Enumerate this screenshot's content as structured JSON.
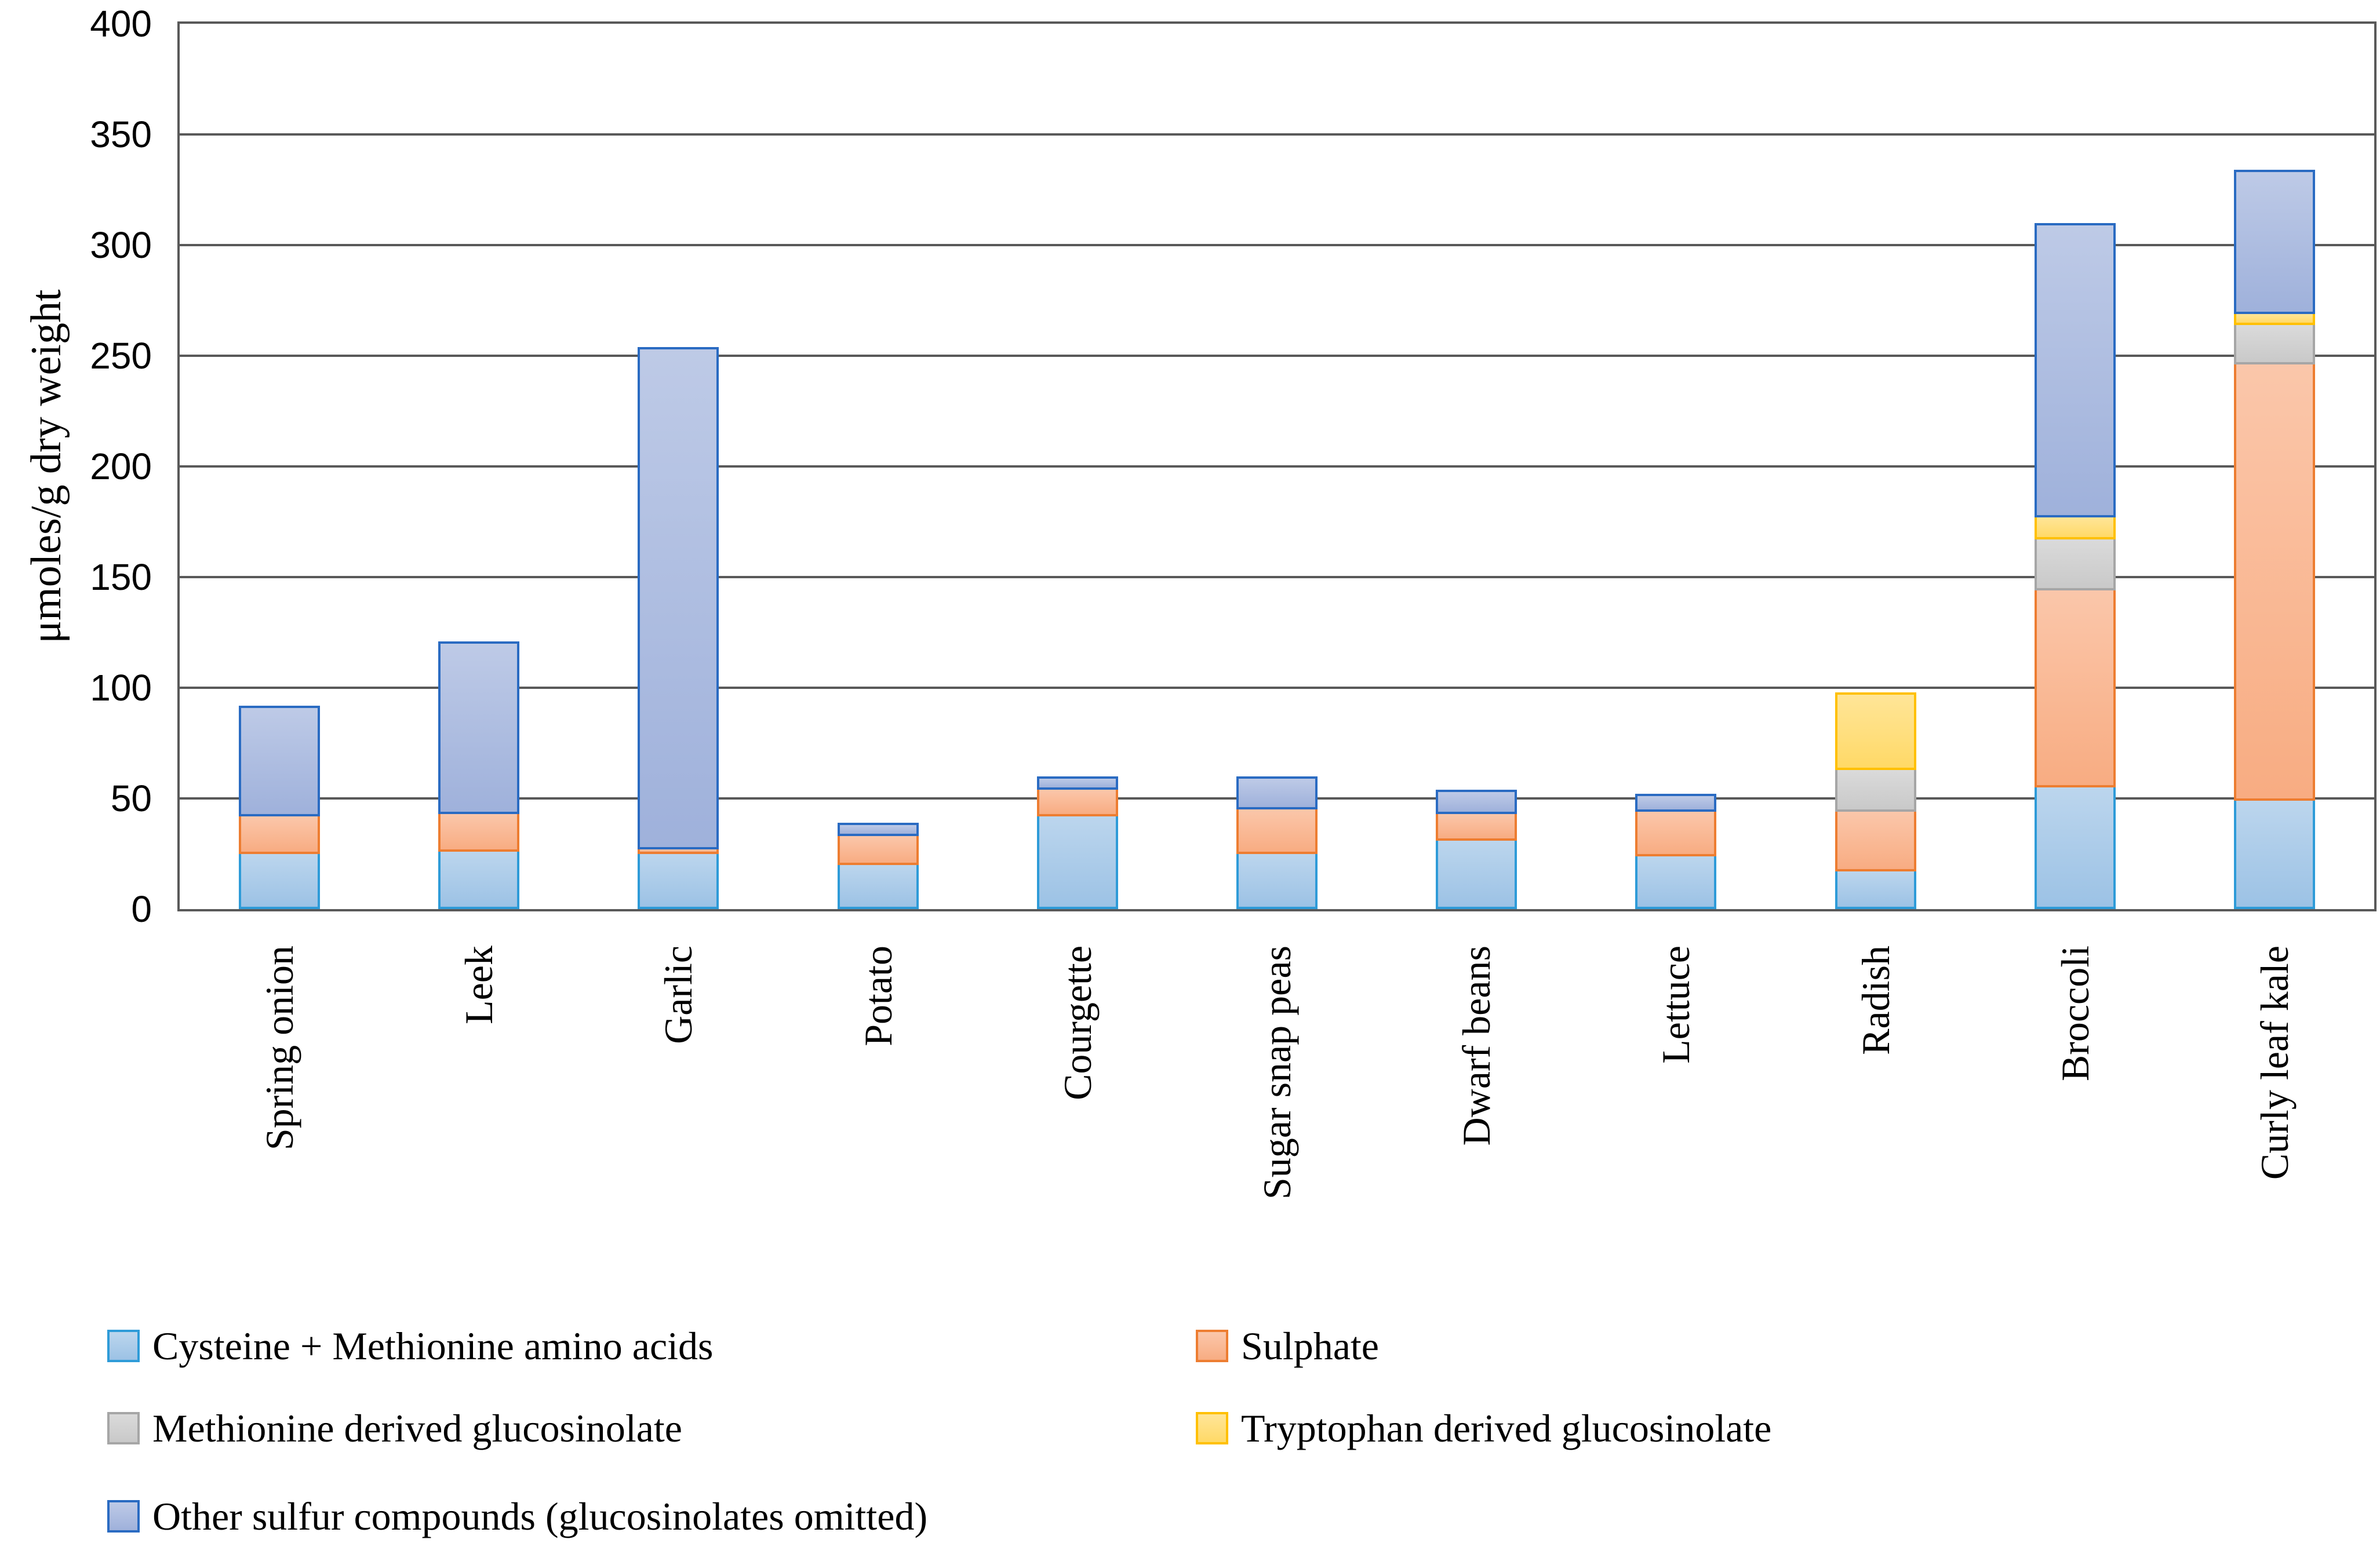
{
  "chart_data": {
    "type": "bar",
    "stacked": true,
    "title": "",
    "xlabel": "",
    "ylabel": "μmoles/g dry weight",
    "ylim": [
      0,
      400
    ],
    "ytick_step": 50,
    "grid": true,
    "legend_position": "bottom",
    "frame_color": "#595959",
    "categories": [
      "Spring onion",
      "Leek",
      "Garlic",
      "Potato",
      "Courgette",
      "Sugar snap peas",
      "Dwarf beans",
      "Lettuce",
      "Radish",
      "Broccoli",
      "Curly leaf kale"
    ],
    "series": [
      {
        "name": "Cysteine + Methionine amino acids",
        "fill": "#9CC2E5",
        "border": "#2E9BD8",
        "values": [
          26,
          27,
          26,
          21,
          43,
          26,
          32,
          25,
          18,
          56,
          50
        ]
      },
      {
        "name": "Sulphate",
        "fill": "#F8AC82",
        "border": "#ED7D31",
        "values": [
          17,
          17,
          2,
          13,
          12,
          20,
          12,
          20,
          27,
          89,
          197
        ]
      },
      {
        "name": "Methionine derived glucosinolate",
        "fill": "#C9C9C9",
        "border": "#A6A6A6",
        "values": [
          0,
          0,
          0,
          0,
          0,
          0,
          0,
          0,
          19,
          23,
          18
        ]
      },
      {
        "name": "Tryptophan derived glucosinolate",
        "fill": "#FFD966",
        "border": "#FFC000",
        "values": [
          0,
          0,
          0,
          0,
          0,
          0,
          0,
          0,
          34,
          10,
          5
        ]
      },
      {
        "name": "Other sulfur compounds (glucosinolates omitted)",
        "fill": "#9FB1DB",
        "border": "#2A6BC2",
        "values": [
          49,
          77,
          226,
          5,
          5,
          14,
          10,
          7,
          0,
          132,
          64
        ]
      }
    ]
  },
  "axes": {
    "y_tick_labels": [
      "0",
      "50",
      "100",
      "150",
      "200",
      "250",
      "300",
      "350",
      "400"
    ]
  }
}
